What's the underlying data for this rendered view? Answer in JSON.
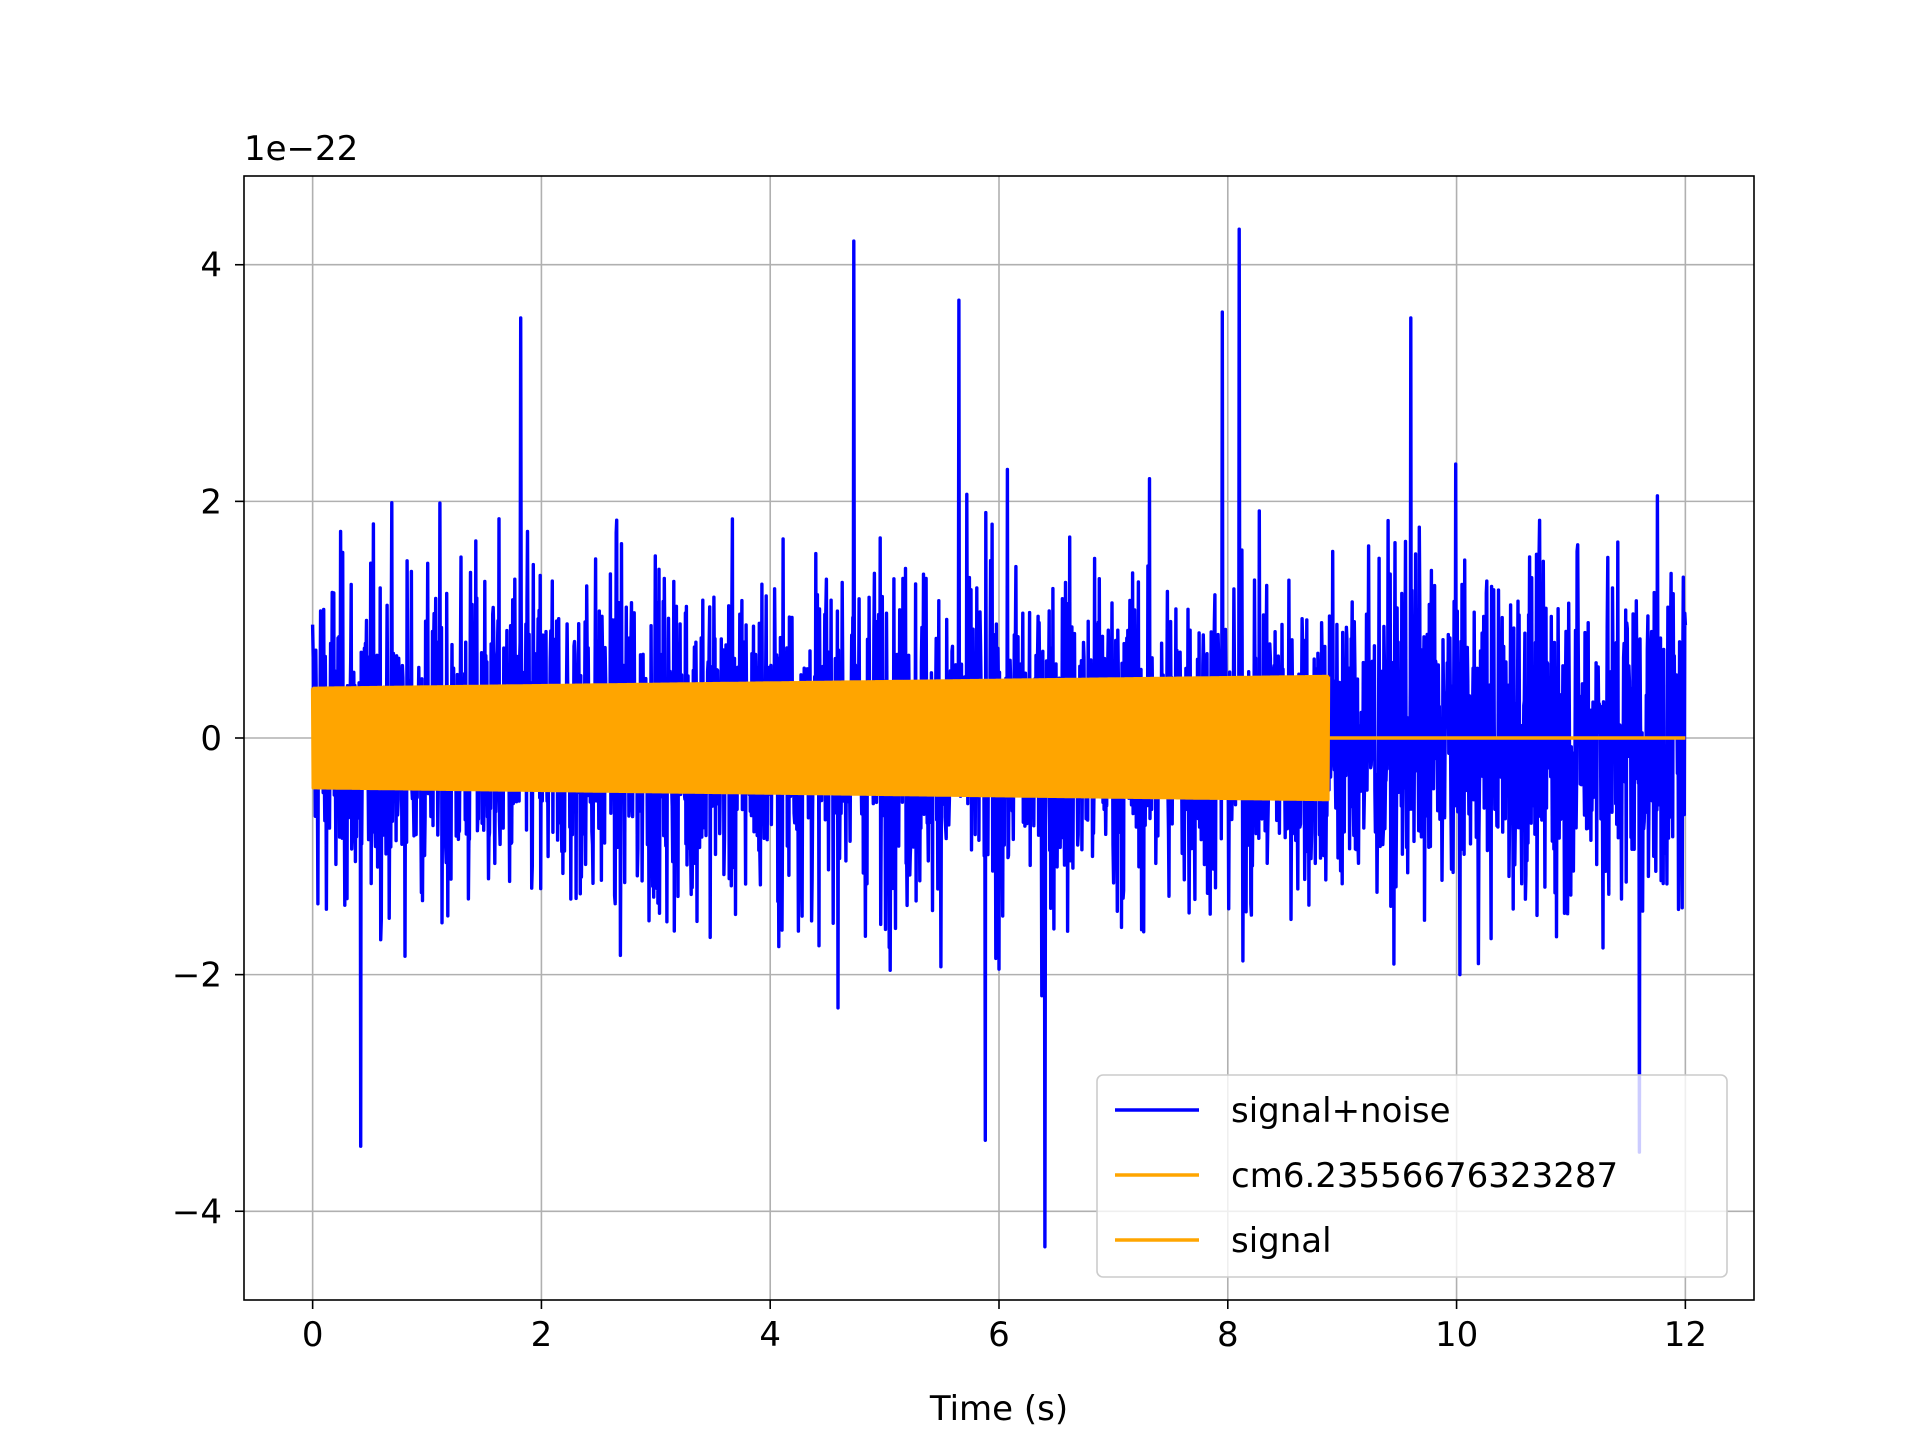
{
  "chart_data": {
    "type": "line",
    "title": "",
    "xlabel": "Time (s)",
    "ylabel": "",
    "y_offset_label": "1e−22",
    "y_scale_factor": 1e-22,
    "xlim": [
      -0.6,
      12.6
    ],
    "ylim": [
      -4.75,
      4.75
    ],
    "xticks": [
      0,
      2,
      4,
      6,
      8,
      10,
      12
    ],
    "xtick_labels": [
      "0",
      "2",
      "4",
      "6",
      "8",
      "10",
      "12"
    ],
    "yticks": [
      -4,
      -2,
      0,
      2,
      4
    ],
    "ytick_labels": [
      "−4",
      "−2",
      "0",
      "2",
      "4"
    ],
    "grid": true,
    "legend_position": "lower-right",
    "series": [
      {
        "name": "signal+noise",
        "color": "#0000ff",
        "x_range": [
          0,
          12
        ],
        "approx_envelope": {
          "typical_amplitude": 1.5,
          "peak_max": 4.3,
          "peak_min": -4.3,
          "notable_peaks": [
            {
              "x": 4.73,
              "y": 4.2
            },
            {
              "x": 8.1,
              "y": 4.3
            },
            {
              "x": 5.65,
              "y": 3.7
            },
            {
              "x": 7.95,
              "y": 3.6
            },
            {
              "x": 1.82,
              "y": 3.55
            },
            {
              "x": 9.6,
              "y": 3.55
            },
            {
              "x": 6.4,
              "y": -4.3
            },
            {
              "x": 5.88,
              "y": -3.4
            },
            {
              "x": 0.42,
              "y": -3.45
            },
            {
              "x": 11.6,
              "y": -3.5
            }
          ]
        }
      },
      {
        "name": "cm6.23556676323287",
        "color": "#ffa500",
        "x_range": [
          0,
          8.88
        ],
        "envelope": {
          "x": [
            0,
            8.88
          ],
          "amplitude": [
            0.42,
            0.52
          ]
        }
      },
      {
        "name": "signal",
        "color": "#ffa500",
        "x_range": [
          8.88,
          12
        ],
        "values": [
          0,
          0
        ]
      }
    ]
  }
}
